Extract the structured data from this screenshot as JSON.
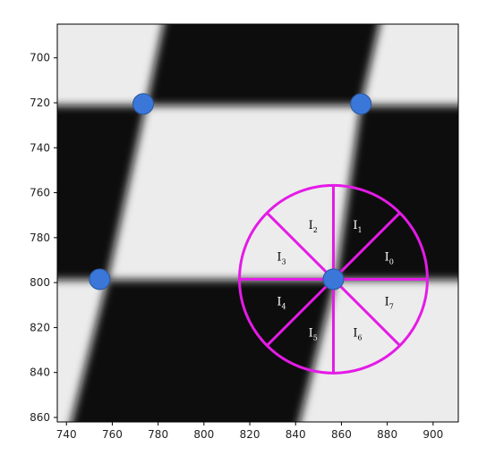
{
  "chart_data": {
    "type": "scatter",
    "title": "",
    "xlabel": "",
    "ylabel": "",
    "xlim": [
      736,
      911
    ],
    "ylim": [
      862,
      685
    ],
    "y_axis_inverted": true,
    "grid": false,
    "xticks": [
      "740",
      "760",
      "780",
      "800",
      "820",
      "840",
      "860",
      "880",
      "900"
    ],
    "yticks": [
      "700",
      "720",
      "740",
      "760",
      "780",
      "800",
      "820",
      "840",
      "860"
    ],
    "background": "grayscale checkerboard image",
    "points": [
      {
        "x": 773.5,
        "y": 720.5
      },
      {
        "x": 868.5,
        "y": 720.5
      },
      {
        "x": 754.5,
        "y": 798.5
      },
      {
        "x": 856.5,
        "y": 798.5
      }
    ],
    "point_color": "#3a77d8",
    "circle": {
      "cx": 856.5,
      "cy": 798.5,
      "r": 41,
      "color": "#e41be6",
      "segments": 8
    },
    "segment_labels": [
      {
        "base": "I",
        "sub": "0",
        "color": "#ffffff"
      },
      {
        "base": "I",
        "sub": "1",
        "color": "#ffffff"
      },
      {
        "base": "I",
        "sub": "2",
        "color": "#000000"
      },
      {
        "base": "I",
        "sub": "3",
        "color": "#000000"
      },
      {
        "base": "I",
        "sub": "4",
        "color": "#ffffff"
      },
      {
        "base": "I",
        "sub": "5",
        "color": "#ffffff"
      },
      {
        "base": "I",
        "sub": "6",
        "color": "#000000"
      },
      {
        "base": "I",
        "sub": "7",
        "color": "#000000"
      }
    ]
  }
}
